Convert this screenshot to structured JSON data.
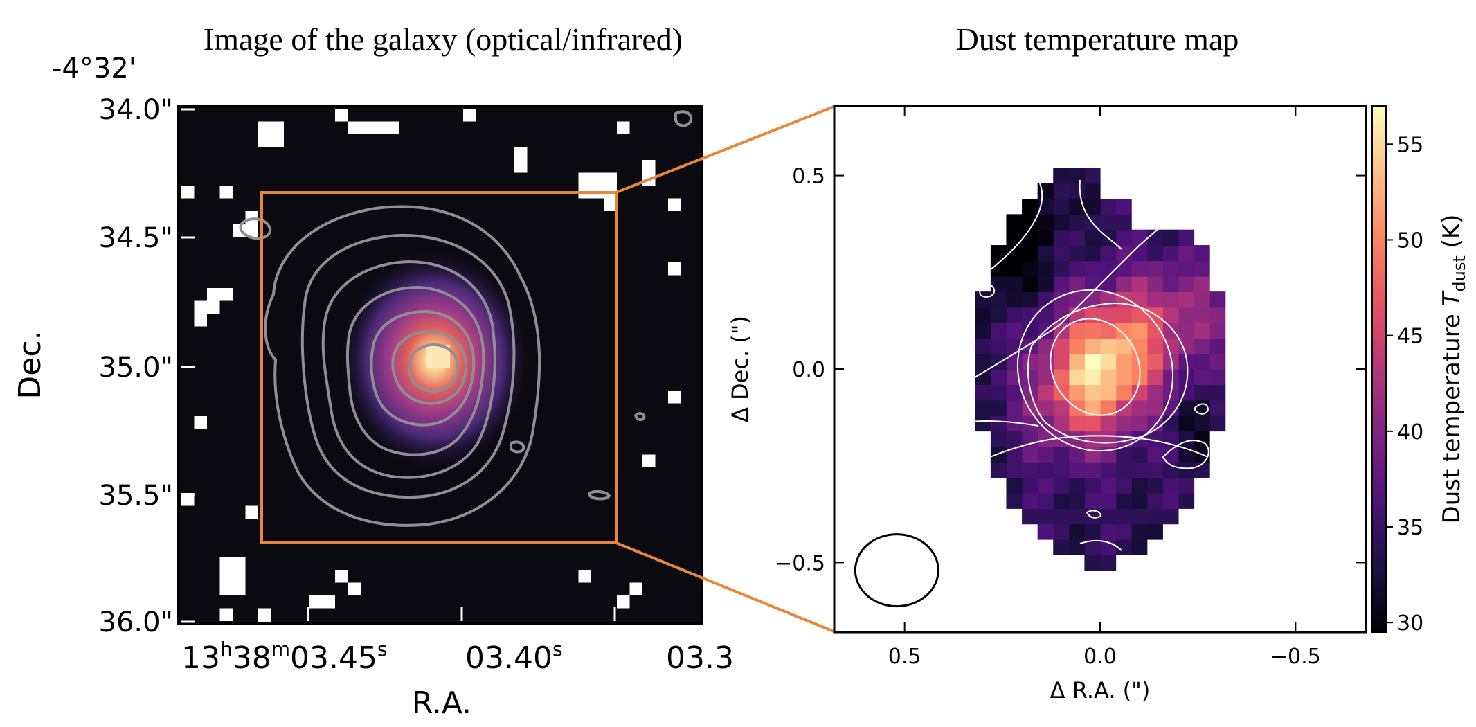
{
  "left_panel": {
    "title": "Image of the galaxy (optical/infrared)",
    "dec_prefix": "-4°32'",
    "ylabel": "Dec.",
    "xlabel": "R.A.",
    "yticks": [
      "34.0\"",
      "34.5\"",
      "35.0\"",
      "35.5\"",
      "36.0\""
    ],
    "xtick1": {
      "base": "13",
      "h": "h",
      "m_base": "38",
      "m": "m",
      "s_base": "03.45",
      "s": "s"
    },
    "xtick2": {
      "base": "03.40",
      "s": "s"
    },
    "xtick3": "03.3",
    "box_color": "#e8873a"
  },
  "chart_data": [
    {
      "type": "heatmap",
      "title": "Dust temperature map",
      "xlabel": "Δ R.A. (\")",
      "ylabel": "Δ Dec. (\")",
      "xlim": [
        0.68,
        -0.68
      ],
      "ylim": [
        -0.68,
        0.68
      ],
      "xticks": [
        0.5,
        0.0,
        -0.5
      ],
      "xtick_labels": [
        "0.5",
        "0.0",
        "−0.5"
      ],
      "yticks": [
        0.5,
        0.0,
        -0.5
      ],
      "ytick_labels": [
        "0.5",
        "0.0",
        "−0.5"
      ],
      "colorbar": {
        "label_prefix": "Dust temperature ",
        "label_T": "T",
        "label_sub": "dust",
        "label_suffix": " (K)",
        "range": [
          29.5,
          57
        ],
        "ticks": [
          "30",
          "35",
          "40",
          "45",
          "50",
          "55"
        ],
        "colormap": "magma"
      },
      "peak": {
        "x": 0.0,
        "y": 0.0,
        "value": 56
      },
      "beam_ellipse": {
        "x": 0.52,
        "y": -0.52
      }
    }
  ]
}
